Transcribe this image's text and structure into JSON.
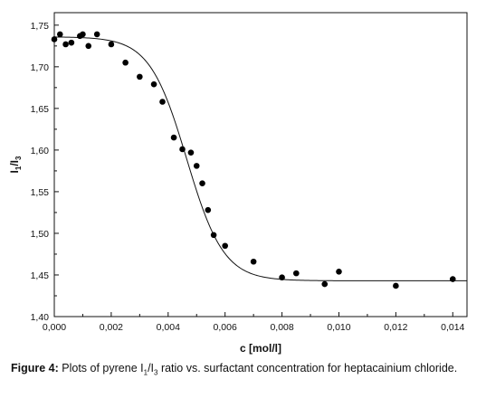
{
  "chart_data": {
    "type": "scatter",
    "xlabel": "c [mol/l]",
    "ylabel": {
      "main_1": "I",
      "sub_1": "1",
      "sep": "/",
      "main_2": "I",
      "sub_2": "3"
    },
    "xlim": [
      0.0,
      0.0145
    ],
    "ylim": [
      1.4,
      1.765
    ],
    "x_ticks": [
      0.0,
      0.002,
      0.004,
      0.006,
      0.008,
      0.01,
      0.012,
      0.014
    ],
    "x_tick_labels": [
      "0,000",
      "0,002",
      "0,004",
      "0,006",
      "0,008",
      "0,010",
      "0,012",
      "0,014"
    ],
    "y_ticks": [
      1.4,
      1.45,
      1.5,
      1.55,
      1.6,
      1.65,
      1.7,
      1.75
    ],
    "y_tick_labels": [
      "1,40",
      "1,45",
      "1,50",
      "1,55",
      "1,60",
      "1,65",
      "1,70",
      "1,75"
    ],
    "grid": false,
    "points": [
      {
        "x": 0.0,
        "y": 1.733
      },
      {
        "x": 0.0002,
        "y": 1.739
      },
      {
        "x": 0.0004,
        "y": 1.727
      },
      {
        "x": 0.0006,
        "y": 1.729
      },
      {
        "x": 0.0009,
        "y": 1.737
      },
      {
        "x": 0.001,
        "y": 1.739
      },
      {
        "x": 0.0012,
        "y": 1.725
      },
      {
        "x": 0.0015,
        "y": 1.739
      },
      {
        "x": 0.002,
        "y": 1.727
      },
      {
        "x": 0.0025,
        "y": 1.705
      },
      {
        "x": 0.003,
        "y": 1.688
      },
      {
        "x": 0.0035,
        "y": 1.679
      },
      {
        "x": 0.0038,
        "y": 1.658
      },
      {
        "x": 0.0042,
        "y": 1.615
      },
      {
        "x": 0.0045,
        "y": 1.601
      },
      {
        "x": 0.0048,
        "y": 1.597
      },
      {
        "x": 0.005,
        "y": 1.581
      },
      {
        "x": 0.0052,
        "y": 1.56
      },
      {
        "x": 0.0054,
        "y": 1.528
      },
      {
        "x": 0.0056,
        "y": 1.498
      },
      {
        "x": 0.006,
        "y": 1.485
      },
      {
        "x": 0.007,
        "y": 1.466
      },
      {
        "x": 0.008,
        "y": 1.447
      },
      {
        "x": 0.0085,
        "y": 1.452
      },
      {
        "x": 0.0095,
        "y": 1.439
      },
      {
        "x": 0.01,
        "y": 1.454
      },
      {
        "x": 0.012,
        "y": 1.437
      },
      {
        "x": 0.014,
        "y": 1.445
      }
    ],
    "fit_curve": {
      "model": "boltzmann",
      "A1": 1.736,
      "A2": 1.443,
      "x0": 0.00465,
      "dx": 0.00065
    }
  },
  "caption": {
    "label": "Figure 4:",
    "text_1": " Plots of pyrene I",
    "sub_1": "1",
    "text_2": "/I",
    "sub_2": "3",
    "text_3": " ratio vs. surfactant concentration for heptacainium chloride."
  }
}
